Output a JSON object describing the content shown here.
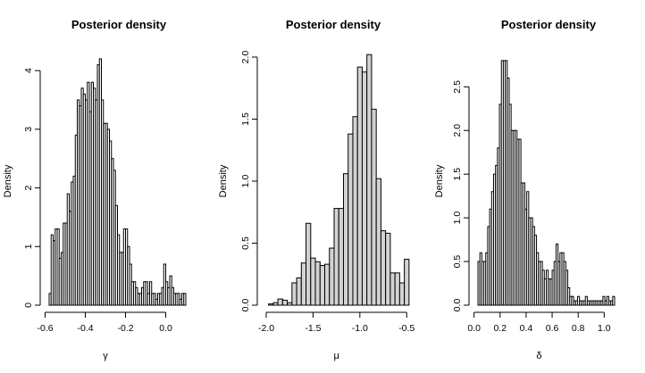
{
  "chart_data": [
    {
      "type": "bar",
      "title": "Posterior density",
      "xlabel": "γ",
      "ylabel": "Density",
      "xlim": [
        -0.58,
        0.1
      ],
      "ylim": [
        0,
        4.23
      ],
      "xticks": [
        "-0.6",
        "-0.4",
        "-0.2",
        "0.0"
      ],
      "yticks": [
        "0",
        "1",
        "2",
        "3",
        "4"
      ],
      "fill": "#ffffff",
      "bin_start": -0.58,
      "bin_width": 0.01,
      "values": [
        0.2,
        1.2,
        1.1,
        1.3,
        1.3,
        0.8,
        0.9,
        1.4,
        1.4,
        1.9,
        1.6,
        2.1,
        2.2,
        2.9,
        3.5,
        3.4,
        3.7,
        3.6,
        3.5,
        3.8,
        3.3,
        3.8,
        3.7,
        3.5,
        4.1,
        4.2,
        3.5,
        3.1,
        3.1,
        3.0,
        2.8,
        2.5,
        2.3,
        1.7,
        1.2,
        0.9,
        0.9,
        1.3,
        1.3,
        1.0,
        0.7,
        0.4,
        0.4,
        0.3,
        0.2,
        0.2,
        0.3,
        0.4,
        0.4,
        0.2,
        0.4,
        0.2,
        0.2,
        0.1,
        0.2,
        0.2,
        0.3,
        0.7,
        0.4,
        0.3,
        0.5,
        0.3,
        0.2,
        0.2,
        0.2,
        0.1,
        0.2,
        0.2
      ]
    },
    {
      "type": "bar",
      "title": "Posterior density",
      "xlabel": "μ",
      "ylabel": "Density",
      "xlim": [
        -2.0,
        -0.55
      ],
      "ylim": [
        0,
        2.0
      ],
      "xticks": [
        "-2.0",
        "-1.5",
        "-1.0",
        "-0.5"
      ],
      "yticks": [
        "0.0",
        "0.5",
        "1.0",
        "1.5",
        "2.0"
      ],
      "fill": "#d3d3d3",
      "bin_start": -1.975,
      "bin_width": 0.05,
      "values": [
        0.01,
        0.02,
        0.05,
        0.04,
        0.02,
        0.18,
        0.22,
        0.34,
        0.66,
        0.38,
        0.35,
        0.32,
        0.33,
        0.46,
        0.78,
        0.78,
        1.06,
        1.38,
        1.52,
        1.92,
        1.88,
        2.02,
        1.58,
        1.02,
        0.6,
        0.58,
        0.26,
        0.26,
        0.18,
        0.37
      ]
    },
    {
      "type": "bar",
      "title": "Posterior density",
      "xlabel": "δ",
      "ylabel": "Density",
      "xlim": [
        0.03,
        1.08
      ],
      "ylim": [
        0,
        2.84
      ],
      "xticks": [
        "0.0",
        "0.2",
        "0.4",
        "0.6",
        "0.8",
        "1.0"
      ],
      "yticks": [
        "0.0",
        "0.5",
        "1.0",
        "1.5",
        "2.0",
        "2.5"
      ],
      "fill": "#ffffff",
      "bin_start": 0.03,
      "bin_width": 0.015,
      "values": [
        0.5,
        0.6,
        0.5,
        0.5,
        0.6,
        0.9,
        1.1,
        1.3,
        1.5,
        1.6,
        1.8,
        2.3,
        2.8,
        2.8,
        2.8,
        2.6,
        2.3,
        2.0,
        2.0,
        2.0,
        1.9,
        1.9,
        1.4,
        1.4,
        1.1,
        1.3,
        1.0,
        1.0,
        0.9,
        0.8,
        0.6,
        0.5,
        0.5,
        0.4,
        0.3,
        0.4,
        0.3,
        0.3,
        0.4,
        0.5,
        0.7,
        0.5,
        0.6,
        0.6,
        0.5,
        0.4,
        0.2,
        0.1,
        0.1,
        0.05,
        0.05,
        0.1,
        0.05,
        0.05,
        0.05,
        0.1,
        0.05,
        0.05,
        0.05,
        0.05,
        0.05,
        0.05,
        0.05,
        0.05,
        0.1,
        0.05,
        0.1,
        0.05,
        0.05,
        0.1
      ]
    }
  ]
}
